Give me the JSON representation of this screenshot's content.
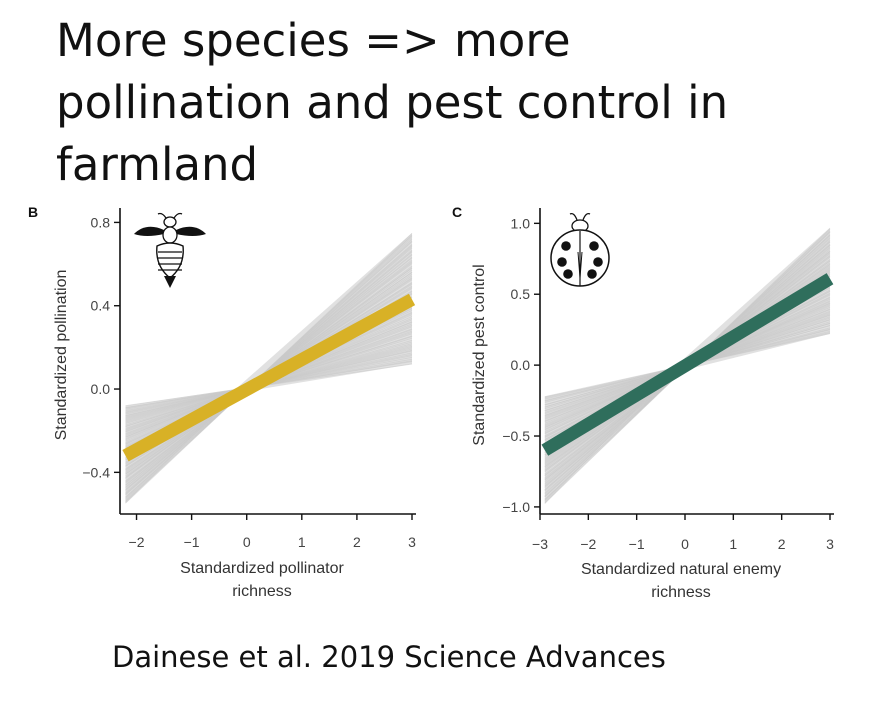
{
  "slide": {
    "title_lines": [
      "More species => more",
      "pollination and pest control in",
      "farmland"
    ],
    "citation": "Dainese et al. 2019 Science Advances"
  },
  "chart_data": [
    {
      "type": "line",
      "panel": "B",
      "icon": "bee-icon",
      "xlabel_lines": [
        "Standardized pollinator",
        "richness"
      ],
      "ylabel": "Standardized pollination",
      "xlim": [
        -2.3,
        3.0
      ],
      "ylim": [
        -0.6,
        0.85
      ],
      "xticks": [
        -2,
        -1,
        0,
        1,
        2,
        3
      ],
      "yticks": [
        -0.4,
        0.0,
        0.4,
        0.8
      ],
      "xtick_labels": [
        "−2",
        "−1",
        "0",
        "1",
        "2",
        "3"
      ],
      "ytick_labels": [
        "−0.4",
        "0.0",
        "0.4",
        "0.8"
      ],
      "fit": {
        "x": [
          -2.2,
          3.0
        ],
        "y": [
          -0.32,
          0.43
        ],
        "color": "#d8b126"
      },
      "band": {
        "x": [
          -2.2,
          -0.2,
          3.0
        ],
        "lower": [
          -0.55,
          -0.02,
          0.12
        ],
        "upper": [
          -0.08,
          0.0,
          0.75
        ],
        "color": "#c8c8c8"
      },
      "grid": false
    },
    {
      "type": "line",
      "panel": "C",
      "icon": "ladybug-icon",
      "xlabel_lines": [
        "Standardized natural enemy",
        "richness"
      ],
      "ylabel": "Standardized pest control",
      "xlim": [
        -3.0,
        3.0
      ],
      "ylim": [
        -1.05,
        1.08
      ],
      "xticks": [
        -3,
        -2,
        -1,
        0,
        1,
        2,
        3
      ],
      "yticks": [
        -1.0,
        -0.5,
        0.0,
        0.5,
        1.0
      ],
      "xtick_labels": [
        "−3",
        "−2",
        "−1",
        "0",
        "1",
        "2",
        "3"
      ],
      "ytick_labels": [
        "−1.0",
        "−0.5",
        "0.0",
        "0.5",
        "1.0"
      ],
      "fit": {
        "x": [
          -2.9,
          3.0
        ],
        "y": [
          -0.6,
          0.61
        ],
        "color": "#2f6e5c"
      },
      "band": {
        "x": [
          -2.9,
          -0.3,
          3.0
        ],
        "lower": [
          -0.98,
          -0.06,
          0.22
        ],
        "upper": [
          -0.22,
          -0.04,
          0.97
        ],
        "color": "#c8c8c8"
      },
      "grid": false
    }
  ]
}
